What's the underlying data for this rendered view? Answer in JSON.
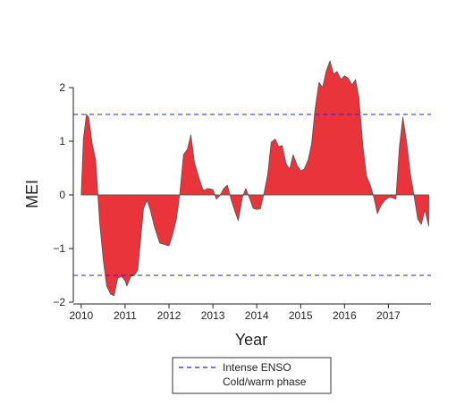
{
  "chart_data": {
    "type": "area",
    "title": "",
    "xlabel": "Year",
    "ylabel": "MEI",
    "xlim": [
      2009.82,
      2017.97
    ],
    "ylim": [
      -2.0,
      2.0
    ],
    "x_ticks": [
      2010,
      2011,
      2012,
      2013,
      2014,
      2015,
      2016,
      2017
    ],
    "y_ticks": [
      -2,
      -1,
      0,
      1,
      2
    ],
    "y_tick_labels": [
      "−2",
      "−1",
      "0",
      "1",
      "2"
    ],
    "grid": false,
    "fill_color": "#e8343a",
    "line_color": "#555555",
    "series": [
      {
        "values": [
          [
            2010.0,
            0.0
          ],
          [
            2010.05,
            1.05
          ],
          [
            2010.12,
            1.5
          ],
          [
            2010.17,
            1.45
          ],
          [
            2010.25,
            0.95
          ],
          [
            2010.33,
            0.65
          ],
          [
            2010.42,
            -0.5
          ],
          [
            2010.5,
            -1.2
          ],
          [
            2010.58,
            -1.7
          ],
          [
            2010.67,
            -1.85
          ],
          [
            2010.75,
            -1.88
          ],
          [
            2010.83,
            -1.55
          ],
          [
            2010.92,
            -1.52
          ],
          [
            2011.0,
            -1.6
          ],
          [
            2011.04,
            -1.7
          ],
          [
            2011.08,
            -1.62
          ],
          [
            2011.13,
            -1.52
          ],
          [
            2011.21,
            -1.5
          ],
          [
            2011.29,
            -1.4
          ],
          [
            2011.42,
            -0.25
          ],
          [
            2011.5,
            -0.1
          ],
          [
            2011.58,
            -0.3
          ],
          [
            2011.67,
            -0.6
          ],
          [
            2011.79,
            -0.9
          ],
          [
            2011.92,
            -0.93
          ],
          [
            2012.0,
            -0.95
          ],
          [
            2012.08,
            -0.75
          ],
          [
            2012.17,
            -0.45
          ],
          [
            2012.25,
            0.05
          ],
          [
            2012.33,
            0.75
          ],
          [
            2012.42,
            0.85
          ],
          [
            2012.5,
            1.12
          ],
          [
            2012.58,
            0.6
          ],
          [
            2012.67,
            0.35
          ],
          [
            2012.75,
            0.15
          ],
          [
            2012.79,
            0.08
          ],
          [
            2012.88,
            0.12
          ],
          [
            2013.0,
            0.1
          ],
          [
            2013.08,
            -0.08
          ],
          [
            2013.17,
            0.0
          ],
          [
            2013.25,
            0.12
          ],
          [
            2013.33,
            0.18
          ],
          [
            2013.42,
            -0.1
          ],
          [
            2013.5,
            -0.3
          ],
          [
            2013.58,
            -0.48
          ],
          [
            2013.67,
            -0.05
          ],
          [
            2013.75,
            0.12
          ],
          [
            2013.83,
            -0.05
          ],
          [
            2013.92,
            -0.25
          ],
          [
            2014.0,
            -0.27
          ],
          [
            2014.08,
            -0.26
          ],
          [
            2014.17,
            0.05
          ],
          [
            2014.25,
            0.38
          ],
          [
            2014.33,
            0.98
          ],
          [
            2014.42,
            1.04
          ],
          [
            2014.5,
            0.9
          ],
          [
            2014.58,
            0.92
          ],
          [
            2014.67,
            0.58
          ],
          [
            2014.75,
            0.48
          ],
          [
            2014.83,
            0.75
          ],
          [
            2014.92,
            0.55
          ],
          [
            2015.0,
            0.45
          ],
          [
            2015.08,
            0.48
          ],
          [
            2015.17,
            0.65
          ],
          [
            2015.25,
            0.95
          ],
          [
            2015.33,
            1.6
          ],
          [
            2015.42,
            2.1
          ],
          [
            2015.5,
            2.0
          ],
          [
            2015.58,
            2.3
          ],
          [
            2015.67,
            2.5
          ],
          [
            2015.75,
            2.25
          ],
          [
            2015.83,
            2.3
          ],
          [
            2015.92,
            2.15
          ],
          [
            2016.0,
            2.22
          ],
          [
            2016.08,
            2.18
          ],
          [
            2016.17,
            2.05
          ],
          [
            2016.25,
            2.15
          ],
          [
            2016.33,
            1.8
          ],
          [
            2016.42,
            0.9
          ],
          [
            2016.5,
            0.35
          ],
          [
            2016.58,
            0.2
          ],
          [
            2016.67,
            -0.05
          ],
          [
            2016.75,
            -0.35
          ],
          [
            2016.83,
            -0.2
          ],
          [
            2016.92,
            -0.1
          ],
          [
            2017.0,
            -0.05
          ],
          [
            2017.08,
            -0.05
          ],
          [
            2017.17,
            -0.08
          ],
          [
            2017.25,
            0.9
          ],
          [
            2017.33,
            1.45
          ],
          [
            2017.42,
            0.95
          ],
          [
            2017.5,
            0.4
          ],
          [
            2017.58,
            0.0
          ],
          [
            2017.67,
            -0.45
          ],
          [
            2017.75,
            -0.55
          ],
          [
            2017.83,
            -0.28
          ],
          [
            2017.92,
            -0.58
          ]
        ]
      }
    ],
    "reference_lines": {
      "values": [
        1.5,
        -1.5
      ],
      "color": "#1f1fd0",
      "style": "dashed"
    },
    "legend": {
      "position": "bottom-center",
      "text_line1": "Intense ENSO",
      "text_line2": "Cold/warm phase"
    }
  }
}
